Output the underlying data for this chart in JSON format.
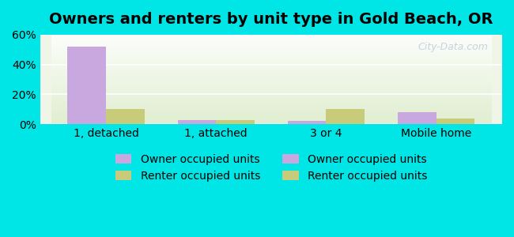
{
  "title": "Owners and renters by unit type in Gold Beach, OR",
  "categories": [
    "1, detached",
    "1, attached",
    "3 or 4",
    "Mobile home"
  ],
  "owner_values": [
    52.0,
    3.0,
    2.0,
    8.0
  ],
  "renter_values": [
    10.0,
    3.0,
    10.0,
    4.0
  ],
  "owner_color": "#c9a8e0",
  "renter_color": "#c8cc7a",
  "owner_label": "Owner occupied units",
  "renter_label": "Renter occupied units",
  "ylim": [
    0,
    60
  ],
  "yticks": [
    0,
    20,
    40,
    60
  ],
  "ytick_labels": [
    "0%",
    "20%",
    "40%",
    "60%"
  ],
  "bar_width": 0.35,
  "background_outer": "#00e5e5",
  "background_plot": "#f0f5e8",
  "title_fontsize": 14,
  "axis_fontsize": 10,
  "legend_fontsize": 10,
  "watermark": "City-Data.com"
}
